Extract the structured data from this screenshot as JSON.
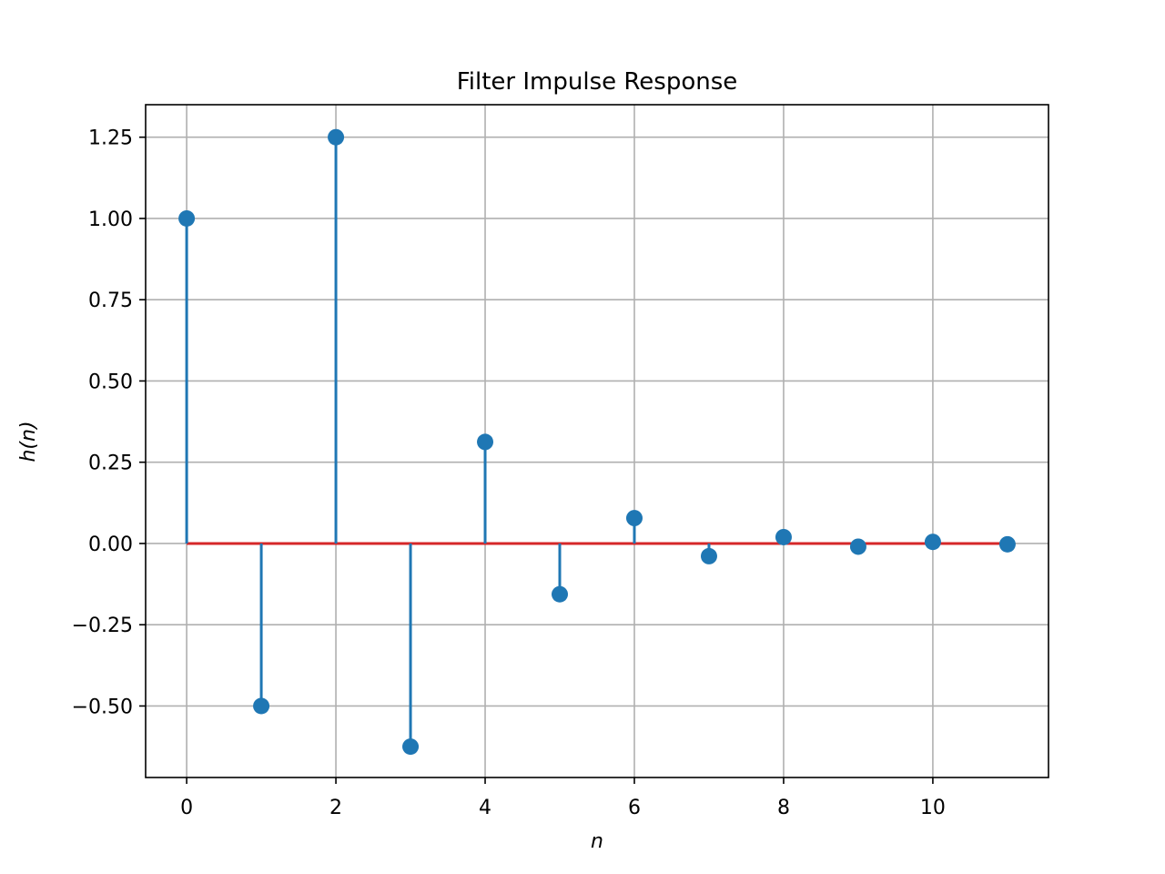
{
  "chart_data": {
    "type": "stem",
    "title": "Filter Impulse Response",
    "xlabel": "n",
    "ylabel": "h(n)",
    "x": [
      0,
      1,
      2,
      3,
      4,
      5,
      6,
      7,
      8,
      9,
      10,
      11
    ],
    "values": [
      1.0,
      -0.5,
      1.25,
      -0.625,
      0.3125,
      -0.15625,
      0.078125,
      -0.0390625,
      0.01953125,
      -0.009765625,
      0.0048828125,
      -0.00244140625
    ],
    "xlim": [
      -0.55,
      11.55
    ],
    "ylim": [
      -0.72,
      1.35
    ],
    "xticks": [
      0,
      2,
      4,
      6,
      8,
      10
    ],
    "xtick_labels": [
      "0",
      "2",
      "4",
      "6",
      "8",
      "10"
    ],
    "yticks": [
      -0.5,
      -0.25,
      0.0,
      0.25,
      0.5,
      0.75,
      1.0,
      1.25
    ],
    "ytick_labels": [
      "−0.50",
      "−0.25",
      "0.00",
      "0.25",
      "0.50",
      "0.75",
      "1.00",
      "1.25"
    ],
    "grid": true,
    "colors": {
      "stem": "#1f77b4",
      "baseline": "#d62728"
    }
  }
}
